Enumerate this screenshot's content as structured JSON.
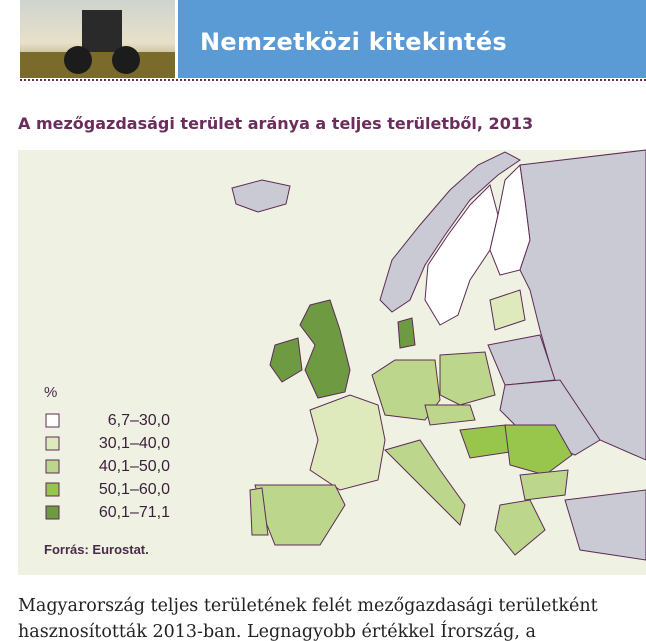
{
  "header": {
    "title": "Nemzetközi  kitekintés"
  },
  "map": {
    "title": "A mezőgazdasági terület aránya a teljes területből, 2013",
    "legend": {
      "unit": "%",
      "items": [
        {
          "label": "6,7–30,0",
          "color": "#ffffff"
        },
        {
          "label": "30,1–40,0",
          "color": "#dfeabc"
        },
        {
          "label": "40,1–50,0",
          "color": "#bcd78b"
        },
        {
          "label": "50,1–60,0",
          "color": "#98c64c"
        },
        {
          "label": "60,1–71,1",
          "color": "#6e9a42"
        }
      ]
    },
    "source": "Forrás: Eurostat."
  },
  "body": {
    "lines": [
      "Magyarország teljes területének felét mezőgazdasági területként",
      "hasznosították 2013-ban. Legnagyobb értékkel Írország, a"
    ]
  }
}
